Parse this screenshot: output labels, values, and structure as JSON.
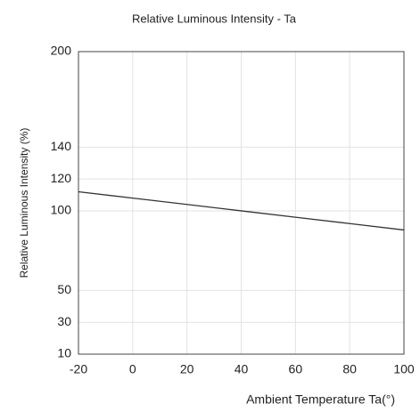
{
  "chart_data": {
    "type": "line",
    "title": "Relative Luminous Intensity - Ta",
    "x_label": "Ambient Temperature Ta(°)",
    "y_label": "Relative Luminous Intensity (%)",
    "x": [
      -20,
      0,
      20,
      40,
      60,
      80,
      100
    ],
    "series": [
      {
        "name": "Relative Luminous Intensity",
        "color": "#333333",
        "values": [
          112,
          108,
          104,
          100,
          96,
          92,
          88
        ]
      }
    ],
    "xlim": [
      -20,
      100
    ],
    "xticks": [
      -20,
      0,
      20,
      40,
      60,
      80,
      100
    ],
    "ylim": [
      10,
      200
    ],
    "yticks": [
      10,
      30,
      50,
      100,
      120,
      140,
      200
    ],
    "grid": true
  }
}
